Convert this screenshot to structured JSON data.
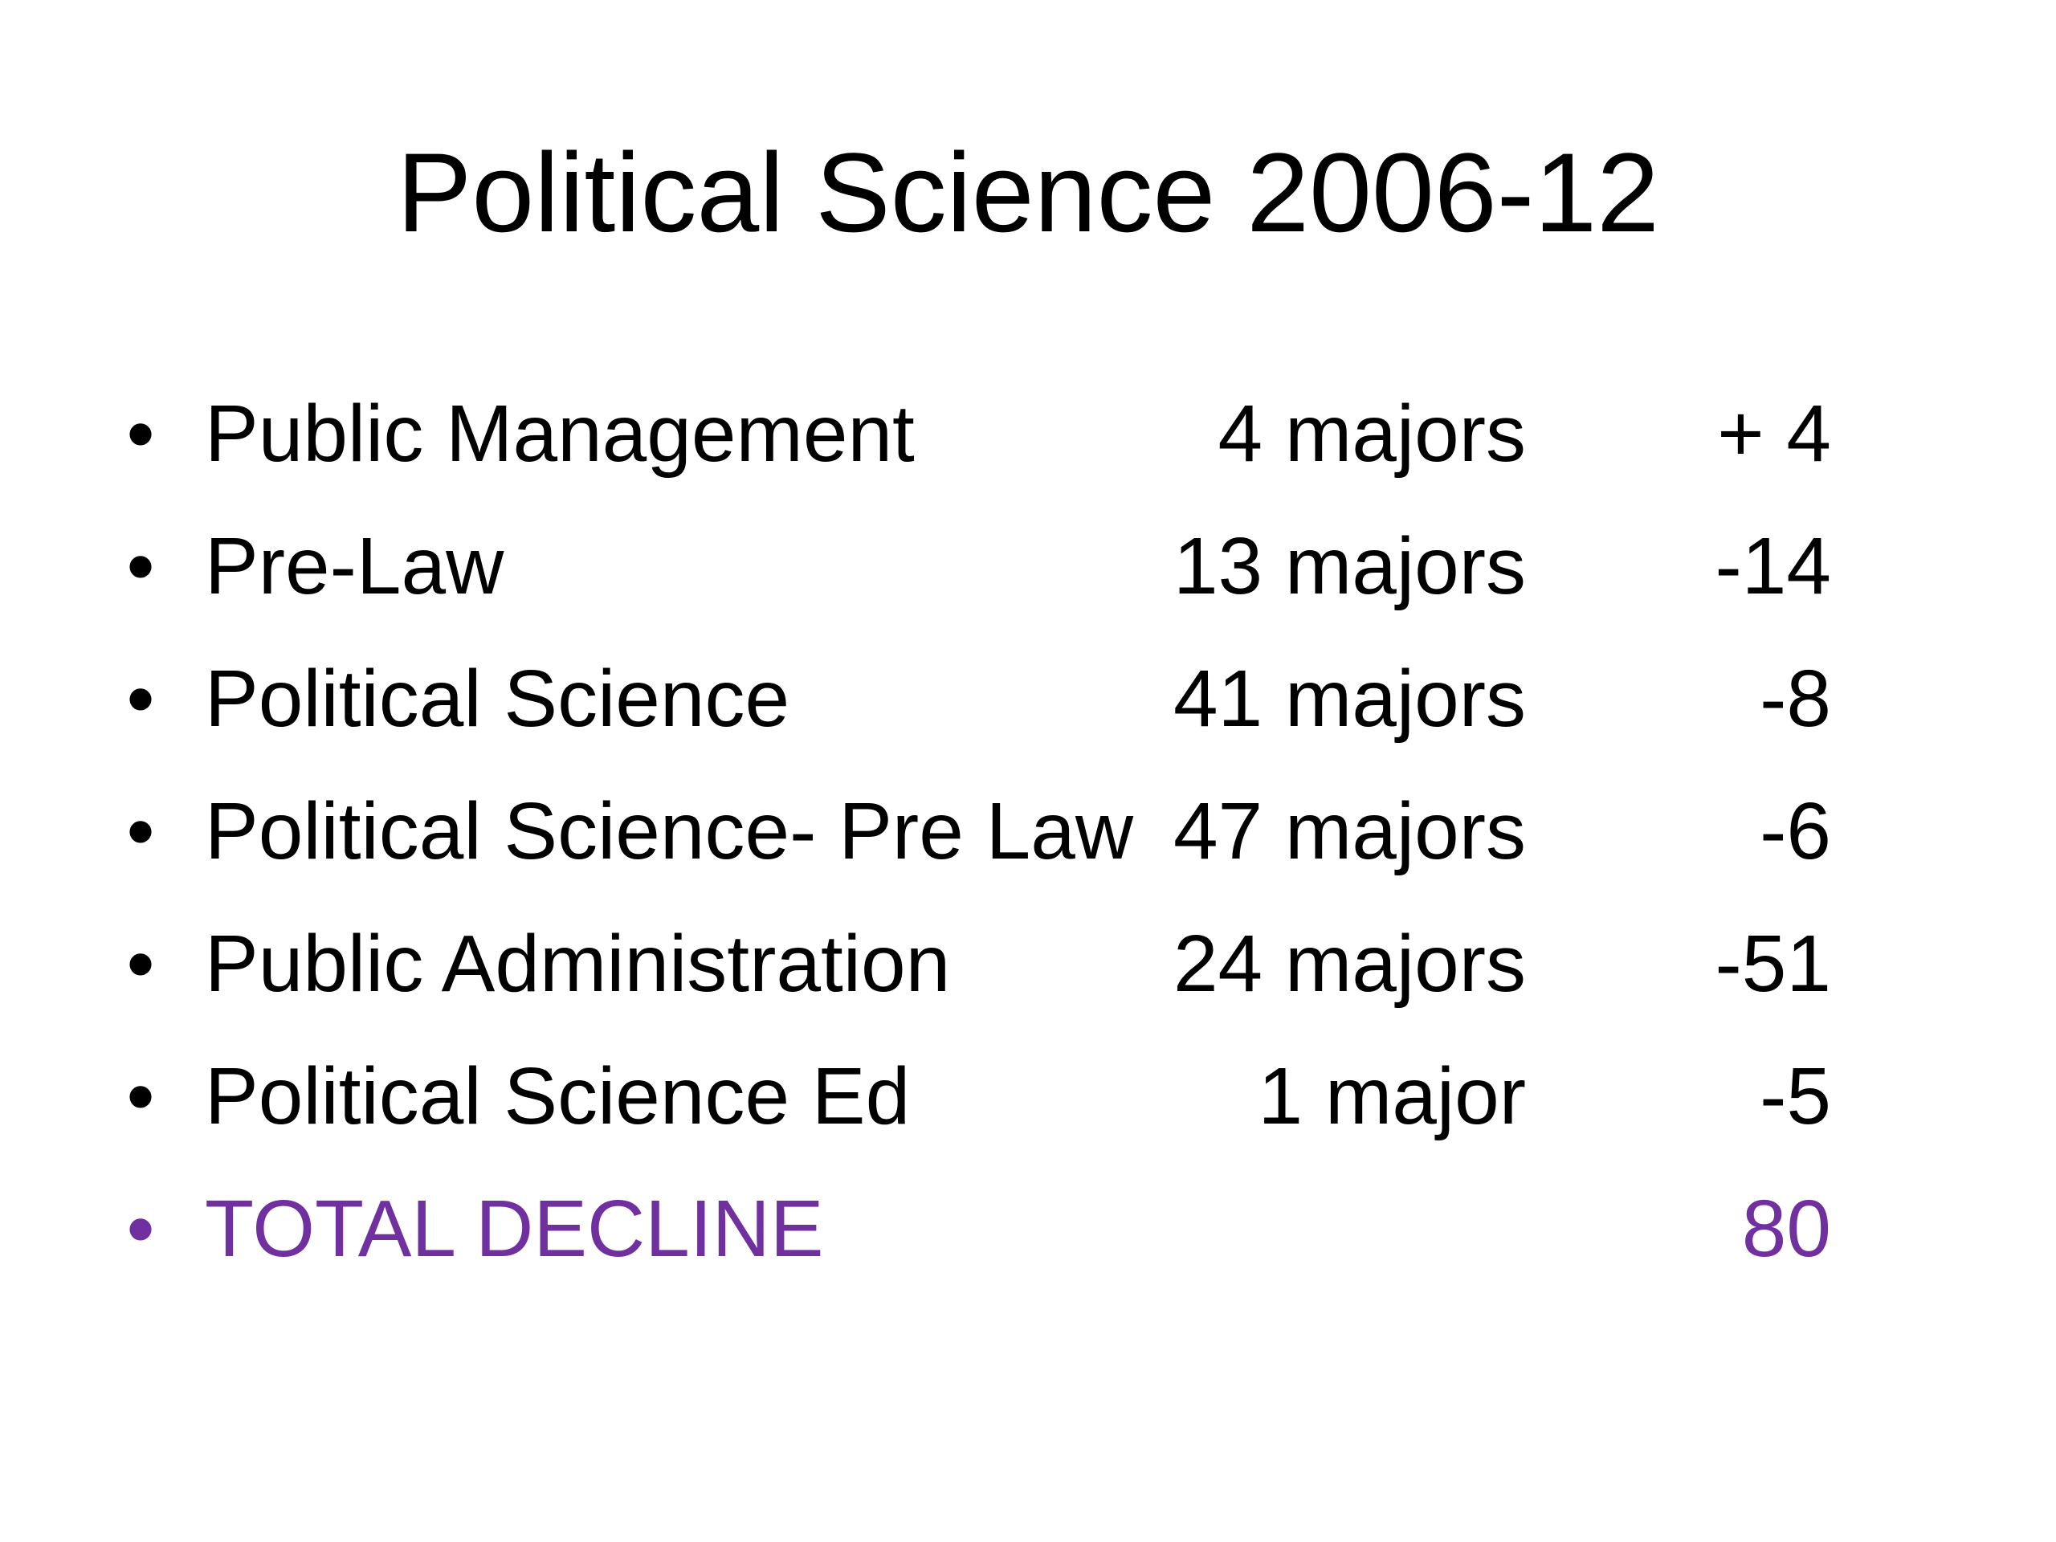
{
  "slide": {
    "title": "Political Science 2006-12",
    "bullet_glyph": "•",
    "rows": [
      {
        "label": "Public Management",
        "majors": "4  majors",
        "change": "+ 4"
      },
      {
        "label": "Pre-Law",
        "majors": "13 majors",
        "change": "-14"
      },
      {
        "label": "Political Science",
        "majors": "41 majors",
        "change": "-8"
      },
      {
        "label": "Political Science- Pre Law",
        "majors": "47 majors",
        "change": "-6"
      },
      {
        "label": "Public Administration",
        "majors": "24 majors",
        "change": "-51"
      },
      {
        "label": "Political Science Ed",
        "majors": "1 major",
        "change": "-5"
      }
    ],
    "total": {
      "label": "TOTAL DECLINE",
      "value": "80"
    },
    "colors": {
      "text": "#000000",
      "total_accent": "#7030a0",
      "background": "#ffffff"
    }
  }
}
